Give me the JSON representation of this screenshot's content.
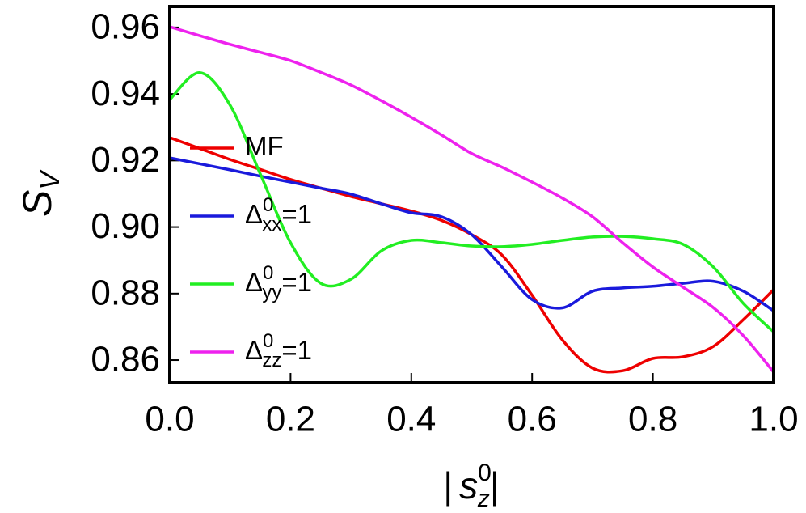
{
  "chart_data": {
    "type": "line",
    "xlabel": {
      "main": "s",
      "sup": "0",
      "sub": "z",
      "left": "|",
      "right": "|"
    },
    "ylabel": {
      "main": "S",
      "sub": "V"
    },
    "x": [
      0,
      0.05,
      0.1,
      0.15,
      0.2,
      0.25,
      0.3,
      0.35,
      0.4,
      0.45,
      0.5,
      0.55,
      0.6,
      0.65,
      0.7,
      0.75,
      0.8,
      0.85,
      0.9,
      0.95,
      1.0
    ],
    "series": [
      {
        "name": {
          "base": "MF"
        },
        "color": "#ee0000",
        "values": [
          0.9269,
          0.9236,
          0.9203,
          0.9173,
          0.9143,
          0.9117,
          0.9092,
          0.907,
          0.9048,
          0.902,
          0.8977,
          0.8916,
          0.8795,
          0.8661,
          0.8576,
          0.8568,
          0.8605,
          0.861,
          0.8641,
          0.8722,
          0.8812
        ]
      },
      {
        "name": {
          "base": "Δ",
          "sup": "0",
          "sub": "xx",
          "rest": "=1"
        },
        "color": "#1a1adc",
        "values": [
          0.9208,
          0.919,
          0.9172,
          0.9153,
          0.9135,
          0.9117,
          0.9099,
          0.907,
          0.9043,
          0.9031,
          0.8977,
          0.888,
          0.8782,
          0.8757,
          0.8807,
          0.8817,
          0.8822,
          0.8831,
          0.8837,
          0.8807,
          0.8748
        ]
      },
      {
        "name": {
          "base": "Δ",
          "sup": "0",
          "sub": "yy",
          "rest": "=1"
        },
        "color": "#22ee22",
        "values": [
          0.9383,
          0.9464,
          0.9366,
          0.9159,
          0.8953,
          0.8831,
          0.8843,
          0.8928,
          0.896,
          0.8953,
          0.8943,
          0.8941,
          0.8948,
          0.896,
          0.897,
          0.8972,
          0.8965,
          0.8948,
          0.888,
          0.877,
          0.8685
        ]
      },
      {
        "name": {
          "base": "Δ",
          "sup": "0",
          "sub": "zz",
          "rest": "=1"
        },
        "color": "#ee22ee",
        "values": [
          0.9602,
          0.9575,
          0.9549,
          0.9525,
          0.95,
          0.9465,
          0.9427,
          0.938,
          0.933,
          0.9277,
          0.9221,
          0.918,
          0.9135,
          0.9087,
          0.9031,
          0.8953,
          0.888,
          0.8819,
          0.8758,
          0.8673,
          0.8564
        ]
      }
    ],
    "xlim": [
      0,
      1
    ],
    "ylim": [
      0.8532,
      0.9663
    ],
    "xticks": [
      {
        "value": 0,
        "label": "0.0"
      },
      0.2,
      0.4,
      0.6,
      0.8,
      {
        "value": 1,
        "label": "1.0"
      }
    ],
    "yticks": [
      0.86,
      0.88,
      {
        "value": 0.9,
        "label": "0.90"
      },
      0.92,
      0.94,
      0.96
    ],
    "legend": "left"
  }
}
